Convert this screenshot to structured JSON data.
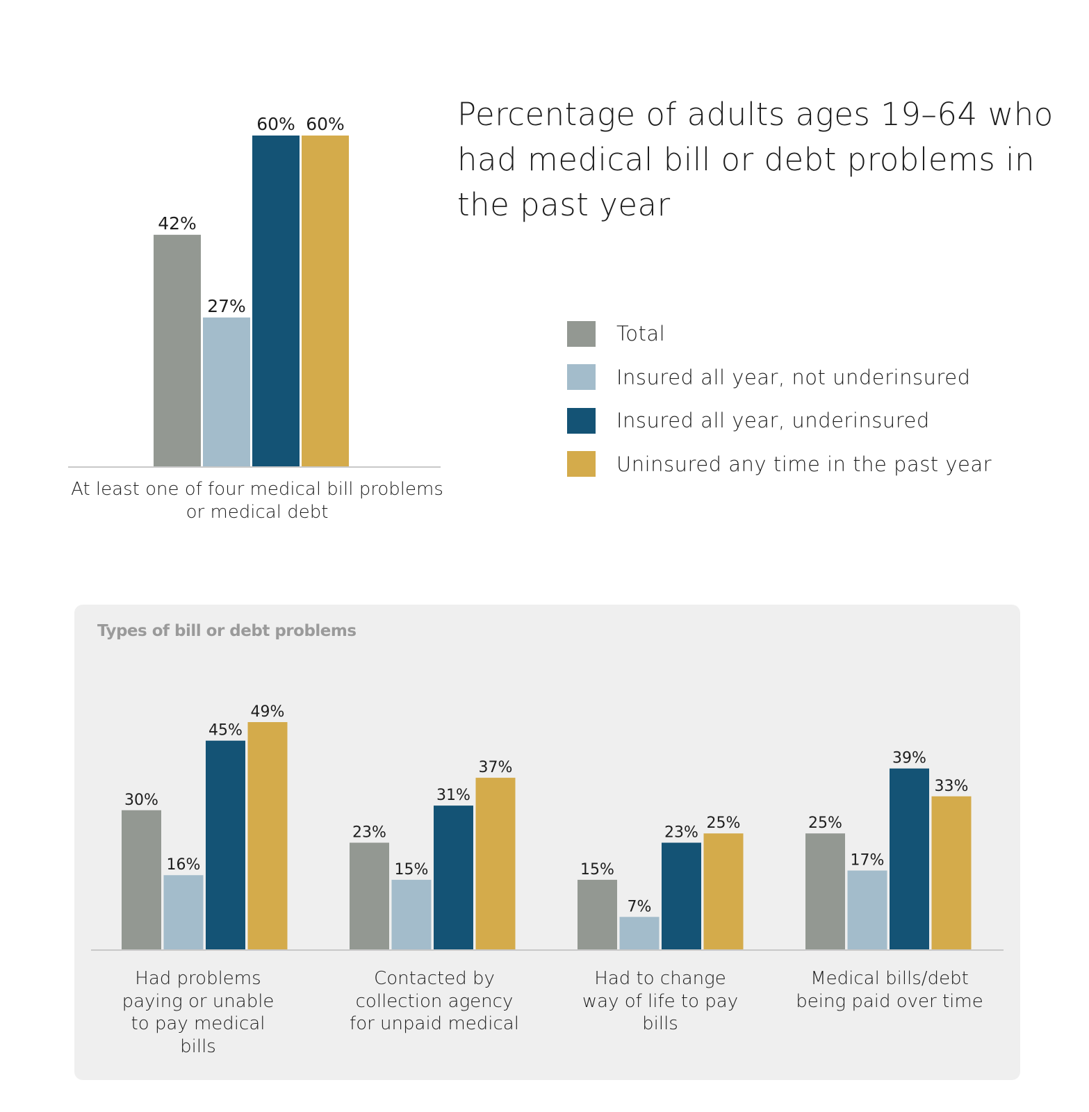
{
  "title": "Percentage of adults ages 19–64 who had medical bill or debt problems in the past year",
  "colors": {
    "Total": "#939892",
    "Insured all year, not underinsured": "#a3bccb",
    "Insured all year, underinsured": "#145375",
    "Uninsured any time in the past year": "#d4ab4b",
    "panel": "#efefef"
  },
  "legend": [
    {
      "label": "Total",
      "color": "#939892"
    },
    {
      "label": "Insured all year, not underinsured",
      "color": "#a3bccb"
    },
    {
      "label": "Insured all year, underinsured",
      "color": "#145375"
    },
    {
      "label": "Uninsured any time in the past year",
      "color": "#d4ab4b"
    }
  ],
  "panel_title": "Types of bill or debt problems",
  "chart_data": [
    {
      "type": "bar",
      "title": "Percentage of adults ages 19–64 who had medical bill or debt problems in the past year",
      "categories": [
        "At least one of four medical bill problems or medical debt"
      ],
      "series": [
        {
          "name": "Total",
          "values": [
            42
          ],
          "labels": [
            "42%"
          ]
        },
        {
          "name": "Insured all year, not underinsured",
          "values": [
            27
          ],
          "labels": [
            "27%"
          ]
        },
        {
          "name": "Insured all year, underinsured",
          "values": [
            60
          ],
          "labels": [
            "60%"
          ]
        },
        {
          "name": "Uninsured any time in the past year",
          "values": [
            60
          ],
          "labels": [
            "60%"
          ]
        }
      ],
      "ylim": [
        0,
        60
      ],
      "legend": "right",
      "grid": false
    },
    {
      "type": "bar",
      "title": "Types of bill or debt problems",
      "categories": [
        "Had problems paying or unable to pay medical bills",
        "Contacted by collection agency for unpaid medical",
        "Had to change way of life to pay bills",
        "Medical bills/debt being paid over time"
      ],
      "series": [
        {
          "name": "Total",
          "values": [
            30,
            23,
            15,
            25
          ],
          "labels": [
            "30%",
            "23%",
            "15%",
            "25%"
          ]
        },
        {
          "name": "Insured all year, not underinsured",
          "values": [
            16,
            15,
            7,
            17
          ],
          "labels": [
            "16%",
            "15%",
            "7%",
            "17%"
          ]
        },
        {
          "name": "Insured all year, underinsured",
          "values": [
            45,
            31,
            23,
            39
          ],
          "labels": [
            "45%",
            "31%",
            "23%",
            "39%"
          ]
        },
        {
          "name": "Uninsured any time in the past year",
          "values": [
            49,
            37,
            25,
            33
          ],
          "labels": [
            "49%",
            "37%",
            "25%",
            "33%"
          ]
        }
      ],
      "ylim": [
        0,
        49
      ],
      "grid": false
    }
  ]
}
